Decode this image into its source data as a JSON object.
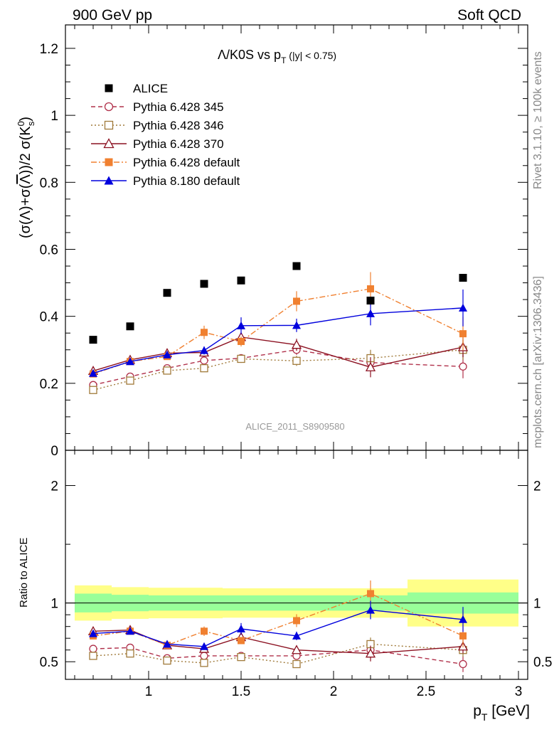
{
  "header": {
    "left": "900 GeV pp",
    "right": "Soft QCD"
  },
  "side": {
    "top": "Rivet 3.1.10, ≥ 100k events",
    "bottom": "mcplots.cern.ch [arXiv:1306.3436]"
  },
  "chart_data": {
    "type": "line",
    "title": "Λ/K0S vs p_T (|y| < 0.75)",
    "xlabel": "p_T [GeV]",
    "ylabel": "(σ(Λ)+σ(Λ̅))/2 σ(K0_s)",
    "ratio_ylabel": "Ratio to ALICE",
    "watermark": "ALICE_2011_S8909580",
    "xlim": [
      0.55,
      3.05
    ],
    "ylim_main": [
      0,
      1.27
    ],
    "ylim_ratio": [
      0.35,
      2.3
    ],
    "x_ticks": [
      "1",
      "1.5",
      "2",
      "2.5",
      "3"
    ],
    "y_ticks_main": [
      "0",
      "0.2",
      "0.4",
      "0.6",
      "0.8",
      "1",
      "1.2"
    ],
    "y_ticks_ratio": [
      "0.5",
      "1",
      "2"
    ],
    "x": [
      0.7,
      0.9,
      1.1,
      1.3,
      1.5,
      1.8,
      2.2,
      2.7
    ],
    "bins": [
      [
        0.6,
        0.8
      ],
      [
        0.8,
        1.0
      ],
      [
        1.0,
        1.2
      ],
      [
        1.2,
        1.4
      ],
      [
        1.4,
        1.6
      ],
      [
        1.6,
        2.0
      ],
      [
        2.0,
        2.4
      ],
      [
        2.4,
        3.0
      ]
    ],
    "series": [
      {
        "name": "ALICE",
        "color": "#000000",
        "marker": "square-filled",
        "values": [
          0.33,
          0.37,
          0.47,
          0.497,
          0.507,
          0.55,
          0.447,
          0.515
        ]
      },
      {
        "name": "Pythia 6.428 345",
        "color": "#b0304a",
        "marker": "circle-open",
        "dash": "6,4",
        "values": [
          0.195,
          0.22,
          0.245,
          0.268,
          0.275,
          0.3,
          0.262,
          0.25
        ],
        "ratio": [
          0.61,
          0.62,
          0.53,
          0.55,
          0.55,
          0.55,
          0.6,
          0.48
        ]
      },
      {
        "name": "Pythia 6.428 346",
        "color": "#a07a3a",
        "marker": "square-open",
        "dash": "2,3",
        "values": [
          0.18,
          0.208,
          0.238,
          0.245,
          0.273,
          0.267,
          0.275,
          0.3
        ],
        "ratio": [
          0.55,
          0.57,
          0.51,
          0.49,
          0.54,
          0.48,
          0.65,
          0.6
        ]
      },
      {
        "name": "Pythia 6.428 370",
        "color": "#8b1020",
        "marker": "triangle-open",
        "values": [
          0.237,
          0.27,
          0.29,
          0.292,
          0.338,
          0.315,
          0.248,
          0.308
        ],
        "ratio": [
          0.76,
          0.77,
          0.64,
          0.61,
          0.71,
          0.6,
          0.57,
          0.63
        ]
      },
      {
        "name": "Pythia 6.428 default",
        "color": "#f08030",
        "marker": "square-filled",
        "dash": "8,3,2,3",
        "values": [
          0.228,
          0.265,
          0.28,
          0.352,
          0.325,
          0.445,
          0.482,
          0.348
        ],
        "ratio": [
          0.72,
          0.76,
          0.64,
          0.76,
          0.68,
          0.85,
          1.08,
          0.72
        ]
      },
      {
        "name": "Pythia 8.180 default",
        "color": "#0000dd",
        "marker": "triangle-filled",
        "values": [
          0.23,
          0.265,
          0.285,
          0.298,
          0.372,
          0.373,
          0.408,
          0.425
        ],
        "ratio": [
          0.74,
          0.76,
          0.65,
          0.63,
          0.78,
          0.72,
          0.94,
          0.86
        ]
      }
    ],
    "errors": {
      "Pythia 6.428 345": [
        0.005,
        0.005,
        0.008,
        0.01,
        0.012,
        0.015,
        0.02,
        0.035
      ],
      "Pythia 6.428 346": [
        0.005,
        0.005,
        0.008,
        0.01,
        0.012,
        0.015,
        0.025,
        0.03
      ],
      "Pythia 6.428 370": [
        0.005,
        0.005,
        0.01,
        0.012,
        0.012,
        0.018,
        0.03,
        0.03
      ],
      "Pythia 6.428 default": [
        0.005,
        0.006,
        0.01,
        0.02,
        0.015,
        0.03,
        0.05,
        0.05
      ],
      "Pythia 8.180 default": [
        0.005,
        0.006,
        0.01,
        0.012,
        0.025,
        0.02,
        0.035,
        0.055
      ]
    },
    "ratio_band": {
      "inner": [
        0.08,
        0.07,
        0.065,
        0.065,
        0.065,
        0.065,
        0.065,
        0.09
      ],
      "outer": [
        0.15,
        0.135,
        0.13,
        0.13,
        0.125,
        0.125,
        0.125,
        0.2
      ],
      "inner_color": "#99ff99",
      "outer_color": "#ffff88"
    },
    "legend_placement": "top-left"
  }
}
